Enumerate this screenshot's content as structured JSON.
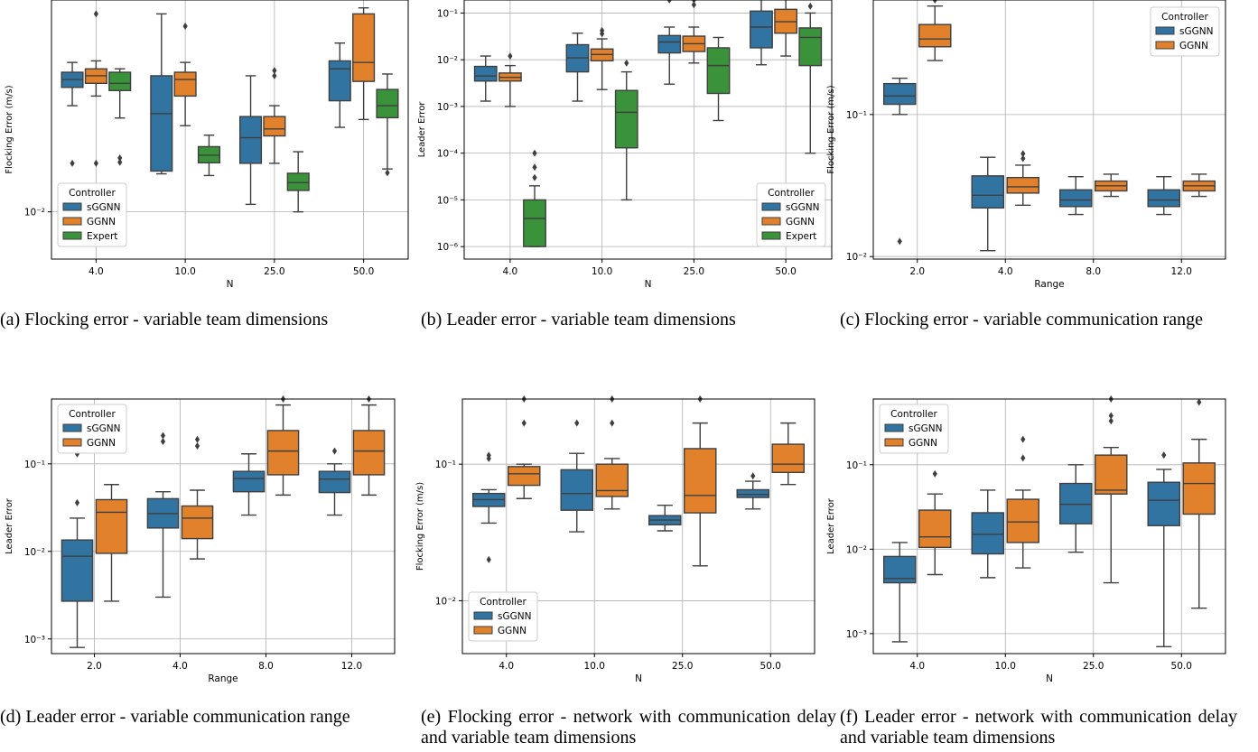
{
  "colors": {
    "sGGNN": "#3274a1",
    "GGNN": "#e1812c",
    "Expert": "#3a923a",
    "grid": "#b0b0b0",
    "whisker": "#3f3f3f"
  },
  "legend_title": "Controller",
  "captions": [
    "(a) Flocking error - variable team dimensions",
    "(b) Leader error - variable team dimensions",
    "(c) Flocking error - variable communication range",
    "(d) Leader error - variable communication range",
    "(e) Flocking error - network with communication delay and variable team dimensions",
    "(f) Leader error - network with communication delay and variable team dimensions"
  ],
  "chart_data": [
    {
      "type": "box",
      "title": "",
      "xlabel": "N",
      "ylabel": "Flocking Error (m/s)",
      "yscale": "log",
      "ylim": [
        0.0058,
        0.115
      ],
      "yticks": [
        0.01
      ],
      "ytick_labels": [
        "10⁻²"
      ],
      "categories": [
        "4.0",
        "10.0",
        "25.0",
        "50.0"
      ],
      "legend_position": "lower-left",
      "series": [
        {
          "name": "sGGNN",
          "boxes": [
            {
              "whislo": 0.034,
              "q1": 0.042,
              "med": 0.046,
              "q3": 0.05,
              "whishi": 0.056,
              "fliers": [
                0.0175
              ]
            },
            {
              "whislo": 0.0155,
              "q1": 0.016,
              "med": 0.031,
              "q3": 0.048,
              "whishi": 0.098,
              "fliers": []
            },
            {
              "whislo": 0.0109,
              "q1": 0.0175,
              "med": 0.0235,
              "q3": 0.03,
              "whishi": 0.048,
              "fliers": []
            },
            {
              "whislo": 0.0265,
              "q1": 0.036,
              "med": 0.052,
              "q3": 0.057,
              "whishi": 0.07,
              "fliers": []
            }
          ]
        },
        {
          "name": "GGNN",
          "boxes": [
            {
              "whislo": 0.038,
              "q1": 0.044,
              "med": 0.048,
              "q3": 0.052,
              "whishi": 0.057,
              "fliers": [
                0.0175,
                0.098
              ]
            },
            {
              "whislo": 0.027,
              "q1": 0.038,
              "med": 0.046,
              "q3": 0.05,
              "whishi": 0.056,
              "fliers": [
                0.085
              ]
            },
            {
              "whislo": 0.0175,
              "q1": 0.024,
              "med": 0.026,
              "q3": 0.03,
              "whishi": 0.034,
              "fliers": [
                0.048,
                0.051
              ]
            },
            {
              "whislo": 0.029,
              "q1": 0.045,
              "med": 0.056,
              "q3": 0.098,
              "whishi": 0.105,
              "fliers": []
            }
          ]
        },
        {
          "name": "Expert",
          "boxes": [
            {
              "whislo": 0.0295,
              "q1": 0.0405,
              "med": 0.044,
              "q3": 0.05,
              "whishi": 0.052,
              "fliers": [
                0.0177,
                0.0186
              ]
            },
            {
              "whislo": 0.0152,
              "q1": 0.0176,
              "med": 0.0192,
              "q3": 0.0212,
              "whishi": 0.0242,
              "fliers": []
            },
            {
              "whislo": 0.01,
              "q1": 0.0128,
              "med": 0.014,
              "q3": 0.0156,
              "whishi": 0.02,
              "fliers": []
            },
            {
              "whislo": 0.0164,
              "q1": 0.0296,
              "med": 0.034,
              "q3": 0.041,
              "whishi": 0.049,
              "fliers": [
                0.0157
              ]
            }
          ]
        }
      ]
    },
    {
      "type": "box",
      "title": "",
      "xlabel": "N",
      "ylabel": "Leader Error",
      "yscale": "log",
      "ylim": [
        5.4e-07,
        0.19
      ],
      "yticks": [
        1e-06,
        1e-05,
        0.0001,
        0.001,
        0.01,
        0.1
      ],
      "ytick_labels": [
        "10⁻⁶",
        "10⁻⁵",
        "10⁻⁴",
        "10⁻³",
        "10⁻²",
        "10⁻¹"
      ],
      "categories": [
        "4.0",
        "10.0",
        "25.0",
        "50.0"
      ],
      "legend_position": "lower-right",
      "series": [
        {
          "name": "sGGNN",
          "boxes": [
            {
              "whislo": 0.0013,
              "q1": 0.0035,
              "med": 0.0045,
              "q3": 0.0072,
              "whishi": 0.012,
              "fliers": []
            },
            {
              "whislo": 0.0013,
              "q1": 0.0055,
              "med": 0.011,
              "q3": 0.021,
              "whishi": 0.037,
              "fliers": []
            },
            {
              "whislo": 0.003,
              "q1": 0.014,
              "med": 0.024,
              "q3": 0.033,
              "whishi": 0.05,
              "fliers": [
                0.19
              ]
            },
            {
              "whislo": 0.0078,
              "q1": 0.018,
              "med": 0.05,
              "q3": 0.11,
              "whishi": 0.21,
              "fliers": []
            }
          ]
        },
        {
          "name": "GGNN",
          "boxes": [
            {
              "whislo": 0.001,
              "q1": 0.0035,
              "med": 0.0042,
              "q3": 0.0052,
              "whishi": 0.0075,
              "fliers": [
                0.012
              ]
            },
            {
              "whislo": 0.0023,
              "q1": 0.0095,
              "med": 0.013,
              "q3": 0.017,
              "whishi": 0.028,
              "fliers": [
                0.036,
                0.042
              ]
            },
            {
              "whislo": 0.0085,
              "q1": 0.015,
              "med": 0.022,
              "q3": 0.032,
              "whishi": 0.05,
              "fliers": [
                0.15,
                0.19
              ]
            },
            {
              "whislo": 0.012,
              "q1": 0.037,
              "med": 0.065,
              "q3": 0.12,
              "whishi": 0.21,
              "fliers": []
            }
          ]
        },
        {
          "name": "Expert",
          "boxes": [
            {
              "whislo": 1e-06,
              "q1": 1e-06,
              "med": 4e-06,
              "q3": 1e-05,
              "whishi": 2e-05,
              "fliers": [
                3e-05,
                5e-05,
                0.0001
              ]
            },
            {
              "whislo": 1e-05,
              "q1": 0.00013,
              "med": 0.00075,
              "q3": 0.0022,
              "whishi": 0.0055,
              "fliers": [
                0.0085
              ]
            },
            {
              "whislo": 0.0005,
              "q1": 0.0019,
              "med": 0.0075,
              "q3": 0.018,
              "whishi": 0.03,
              "fliers": []
            },
            {
              "whislo": 0.0001,
              "q1": 0.0075,
              "med": 0.03,
              "q3": 0.048,
              "whishi": 0.1,
              "fliers": [
                0.14
              ]
            }
          ]
        }
      ]
    },
    {
      "type": "box",
      "title": "",
      "xlabel": "Range",
      "ylabel": "Flocking Error (m/s)",
      "yscale": "log",
      "ylim": [
        0.0096,
        0.64
      ],
      "yticks": [
        0.01,
        0.1
      ],
      "ytick_labels": [
        "10⁻²",
        "10⁻¹"
      ],
      "categories": [
        "2.0",
        "4.0",
        "8.0",
        "12.0"
      ],
      "legend_position": "upper-right",
      "series": [
        {
          "name": "sGGNN",
          "boxes": [
            {
              "whislo": 0.1,
              "q1": 0.118,
              "med": 0.135,
              "q3": 0.165,
              "whishi": 0.18,
              "fliers": [
                0.0128
              ]
            },
            {
              "whislo": 0.011,
              "q1": 0.022,
              "med": 0.027,
              "q3": 0.037,
              "whishi": 0.05,
              "fliers": []
            },
            {
              "whislo": 0.0198,
              "q1": 0.0225,
              "med": 0.025,
              "q3": 0.0295,
              "whishi": 0.0365,
              "fliers": []
            },
            {
              "whislo": 0.0198,
              "q1": 0.0225,
              "med": 0.025,
              "q3": 0.0295,
              "whishi": 0.0365,
              "fliers": []
            }
          ]
        },
        {
          "name": "GGNN",
          "boxes": [
            {
              "whislo": 0.24,
              "q1": 0.3,
              "med": 0.34,
              "q3": 0.43,
              "whishi": 0.58,
              "fliers": [
                0.64
              ]
            },
            {
              "whislo": 0.023,
              "q1": 0.028,
              "med": 0.031,
              "q3": 0.036,
              "whishi": 0.044,
              "fliers": [
                0.049,
                0.053
              ]
            },
            {
              "whislo": 0.0265,
              "q1": 0.029,
              "med": 0.0315,
              "q3": 0.034,
              "whishi": 0.038,
              "fliers": []
            },
            {
              "whislo": 0.0265,
              "q1": 0.029,
              "med": 0.0315,
              "q3": 0.034,
              "whishi": 0.038,
              "fliers": []
            }
          ]
        }
      ]
    },
    {
      "type": "box",
      "title": "",
      "xlabel": "Range",
      "ylabel": "Leader Error",
      "yscale": "log",
      "ylim": [
        0.00068,
        0.55
      ],
      "yticks": [
        0.001,
        0.01,
        0.1
      ],
      "ytick_labels": [
        "10⁻³",
        "10⁻²",
        "10⁻¹"
      ],
      "categories": [
        "2.0",
        "4.0",
        "8.0",
        "12.0"
      ],
      "legend_position": "upper-left",
      "series": [
        {
          "name": "sGGNN",
          "boxes": [
            {
              "whislo": 0.0008,
              "q1": 0.0027,
              "med": 0.0088,
              "q3": 0.0135,
              "whishi": 0.024,
              "fliers": [
                0.036,
                0.13
              ]
            },
            {
              "whislo": 0.003,
              "q1": 0.0185,
              "med": 0.027,
              "q3": 0.04,
              "whishi": 0.048,
              "fliers": [
                0.18,
                0.21
              ]
            },
            {
              "whislo": 0.026,
              "q1": 0.048,
              "med": 0.068,
              "q3": 0.082,
              "whishi": 0.13,
              "fliers": []
            },
            {
              "whislo": 0.026,
              "q1": 0.047,
              "med": 0.067,
              "q3": 0.082,
              "whishi": 0.1,
              "fliers": [
                0.14
              ]
            }
          ]
        },
        {
          "name": "GGNN",
          "boxes": [
            {
              "whislo": 0.0027,
              "q1": 0.0095,
              "med": 0.028,
              "q3": 0.039,
              "whishi": 0.058,
              "fliers": []
            },
            {
              "whislo": 0.0082,
              "q1": 0.014,
              "med": 0.024,
              "q3": 0.033,
              "whishi": 0.05,
              "fliers": [
                0.16,
                0.19
              ]
            },
            {
              "whislo": 0.044,
              "q1": 0.075,
              "med": 0.14,
              "q3": 0.24,
              "whishi": 0.47,
              "fliers": [
                0.55
              ]
            },
            {
              "whislo": 0.044,
              "q1": 0.075,
              "med": 0.14,
              "q3": 0.24,
              "whishi": 0.47,
              "fliers": [
                0.55
              ]
            }
          ]
        }
      ]
    },
    {
      "type": "box",
      "title": "",
      "xlabel": "N",
      "ylabel": "Flocking Error (m/s)",
      "yscale": "log",
      "ylim": [
        0.0041,
        0.3
      ],
      "yticks": [
        0.01,
        0.1
      ],
      "ytick_labels": [
        "10⁻²",
        "10⁻¹"
      ],
      "categories": [
        "4.0",
        "10.0",
        "25.0",
        "50.0"
      ],
      "legend_position": "lower-left",
      "series": [
        {
          "name": "sGGNN",
          "boxes": [
            {
              "whislo": 0.037,
              "q1": 0.049,
              "med": 0.055,
              "q3": 0.061,
              "whishi": 0.065,
              "fliers": [
                0.02,
                0.11,
                0.116
              ]
            },
            {
              "whislo": 0.032,
              "q1": 0.046,
              "med": 0.061,
              "q3": 0.091,
              "whishi": 0.12,
              "fliers": [
                0.2
              ]
            },
            {
              "whislo": 0.0325,
              "q1": 0.036,
              "med": 0.039,
              "q3": 0.042,
              "whishi": 0.05,
              "fliers": []
            },
            {
              "whislo": 0.047,
              "q1": 0.057,
              "med": 0.06,
              "q3": 0.065,
              "whishi": 0.075,
              "fliers": [
                0.082
              ]
            }
          ]
        },
        {
          "name": "GGNN",
          "boxes": [
            {
              "whislo": 0.056,
              "q1": 0.07,
              "med": 0.085,
              "q3": 0.096,
              "whishi": 0.1,
              "fliers": [
                0.2,
                0.3
              ]
            },
            {
              "whislo": 0.047,
              "q1": 0.058,
              "med": 0.064,
              "q3": 0.1,
              "whishi": 0.11,
              "fliers": [
                0.2,
                0.3
              ]
            },
            {
              "whislo": 0.018,
              "q1": 0.044,
              "med": 0.059,
              "q3": 0.13,
              "whishi": 0.2,
              "fliers": [
                0.3
              ]
            },
            {
              "whislo": 0.071,
              "q1": 0.087,
              "med": 0.1,
              "q3": 0.14,
              "whishi": 0.2,
              "fliers": []
            }
          ]
        }
      ]
    },
    {
      "type": "box",
      "title": "",
      "xlabel": "N",
      "ylabel": "Leader Error",
      "yscale": "log",
      "ylim": [
        0.00058,
        0.6
      ],
      "yticks": [
        0.001,
        0.01,
        0.1
      ],
      "ytick_labels": [
        "10⁻³",
        "10⁻²",
        "10⁻¹"
      ],
      "categories": [
        "4.0",
        "10.0",
        "25.0",
        "50.0"
      ],
      "legend_position": "upper-left",
      "series": [
        {
          "name": "sGGNN",
          "boxes": [
            {
              "whislo": 0.0008,
              "q1": 0.004,
              "med": 0.0045,
              "q3": 0.0082,
              "whishi": 0.012,
              "fliers": []
            },
            {
              "whislo": 0.0046,
              "q1": 0.0088,
              "med": 0.015,
              "q3": 0.027,
              "whishi": 0.05,
              "fliers": []
            },
            {
              "whislo": 0.0092,
              "q1": 0.02,
              "med": 0.034,
              "q3": 0.06,
              "whishi": 0.1,
              "fliers": []
            },
            {
              "whislo": 0.0007,
              "q1": 0.019,
              "med": 0.038,
              "q3": 0.062,
              "whishi": 0.088,
              "fliers": [
                0.13
              ]
            }
          ]
        },
        {
          "name": "GGNN",
          "boxes": [
            {
              "whislo": 0.005,
              "q1": 0.0105,
              "med": 0.014,
              "q3": 0.029,
              "whishi": 0.045,
              "fliers": [
                0.078
              ]
            },
            {
              "whislo": 0.006,
              "q1": 0.012,
              "med": 0.021,
              "q3": 0.039,
              "whishi": 0.05,
              "fliers": [
                0.12,
                0.2
              ]
            },
            {
              "whislo": 0.004,
              "q1": 0.045,
              "med": 0.05,
              "q3": 0.13,
              "whishi": 0.16,
              "fliers": [
                0.33,
                0.38,
                0.6
              ]
            },
            {
              "whislo": 0.002,
              "q1": 0.026,
              "med": 0.06,
              "q3": 0.105,
              "whishi": 0.2,
              "fliers": [
                0.55
              ]
            }
          ]
        }
      ]
    }
  ]
}
